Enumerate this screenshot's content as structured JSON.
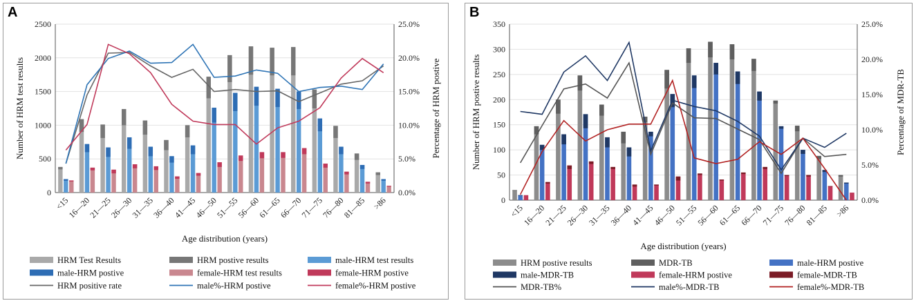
{
  "panelA": {
    "letter": "A",
    "chart_data": {
      "type": "bar",
      "categories": [
        "<15",
        "16—20",
        "21—25",
        "26—30",
        "31—35",
        "36—40",
        "41—45",
        "46—50",
        "51—55",
        "56—60",
        "61—65",
        "66—70",
        "71—75",
        "76—80",
        "81—85",
        ">86"
      ],
      "ylabel": "Number of HRM test results",
      "y2label": "Percentage of HRM postive",
      "xlabel": "Age distribution (years)",
      "ylim": [
        0,
        2500
      ],
      "yticks": [
        "0",
        "500",
        "1000",
        "1500",
        "2000",
        "2500"
      ],
      "y2lim": [
        0,
        25
      ],
      "y2ticks": [
        "0.0%",
        "5.0%",
        "10.0%",
        "15.0%",
        "20.0%",
        "25.0%"
      ],
      "bar_groups": [
        {
          "name": "HRM Test Results",
          "color": "#a9a9a9",
          "values": [
            380,
            1090,
            1010,
            1240,
            1070,
            780,
            1000,
            1720,
            2040,
            2170,
            2150,
            2160,
            1530,
            990,
            580,
            300
          ]
        },
        {
          "name": "male-HRM test results",
          "color": "#5b9bd5",
          "values": [
            200,
            720,
            670,
            820,
            680,
            540,
            700,
            1260,
            1480,
            1570,
            1540,
            1500,
            1100,
            680,
            410,
            200
          ]
        },
        {
          "name": "female-HRM test results",
          "color": "#c9878f",
          "values": [
            180,
            370,
            340,
            420,
            390,
            240,
            290,
            450,
            550,
            600,
            600,
            660,
            430,
            310,
            160,
            100
          ]
        }
      ],
      "stack_overlays": [
        {
          "name": "HRM postive results",
          "color": "#777777",
          "base_group": 0,
          "values": [
            35,
            190,
            200,
            240,
            210,
            150,
            180,
            320,
            400,
            420,
            410,
            420,
            280,
            180,
            95,
            40
          ]
        },
        {
          "name": "male-HRM postive",
          "color": "#2e6db4",
          "base_group": 1,
          "values": [
            25,
            120,
            140,
            170,
            140,
            95,
            130,
            220,
            270,
            280,
            270,
            260,
            190,
            110,
            60,
            25
          ]
        },
        {
          "name": "female-HRM postive",
          "color": "#c0395a",
          "base_group": 2,
          "values": [
            15,
            40,
            55,
            60,
            55,
            35,
            40,
            70,
            80,
            90,
            85,
            90,
            60,
            40,
            25,
            12
          ]
        }
      ],
      "lines": [
        {
          "name": "HRM positive rate",
          "color": "#666666",
          "values": [
            4.3,
            14.5,
            20.7,
            20.8,
            18.8,
            17.1,
            18.3,
            15.0,
            15.3,
            15.0,
            15.1,
            13.5,
            14.8,
            16.1,
            16.6,
            18.8
          ]
        },
        {
          "name": "male%-HRM postive",
          "color": "#2e74b5",
          "values": [
            4.3,
            16.0,
            19.9,
            21.0,
            19.2,
            19.3,
            22.0,
            17.1,
            17.3,
            18.2,
            17.7,
            15.0,
            15.6,
            15.8,
            15.3,
            19.1
          ]
        },
        {
          "name": "female%-HRM postive",
          "color": "#c0395a",
          "values": [
            6.3,
            10.1,
            22.0,
            20.6,
            17.8,
            13.1,
            10.6,
            10.1,
            10.1,
            7.2,
            9.6,
            10.6,
            12.6,
            17.0,
            19.9,
            17.8
          ]
        }
      ],
      "legend": [
        {
          "label": "HRM Test Results",
          "kind": "box",
          "color": "#a9a9a9"
        },
        {
          "label": "HRM postive results",
          "kind": "box",
          "color": "#777777"
        },
        {
          "label": "male-HRM test results",
          "kind": "box",
          "color": "#5b9bd5"
        },
        {
          "label": "male-HRM postive",
          "kind": "box",
          "color": "#2e6db4"
        },
        {
          "label": "female-HRM test results",
          "kind": "box",
          "color": "#c9878f"
        },
        {
          "label": "female-HRM postive",
          "kind": "box",
          "color": "#c0395a"
        },
        {
          "label": "HRM positive rate",
          "kind": "line",
          "color": "#666666"
        },
        {
          "label": "male%-HRM postive",
          "kind": "line",
          "color": "#2e74b5"
        },
        {
          "label": "female%-HRM postive",
          "kind": "line",
          "color": "#c0395a"
        }
      ]
    }
  },
  "panelB": {
    "letter": "B",
    "chart_data": {
      "type": "bar",
      "categories": [
        "<15",
        "16—20",
        "21—25",
        "26—30",
        "31—35",
        "36—40",
        "41—45",
        "46—50",
        "51—55",
        "56—60",
        "61—65",
        "66—70",
        "71—75",
        "76—80",
        "81—85",
        ">86"
      ],
      "ylabel": "Number of HRM postive results",
      "y2label": "Percentage of MDR-TB",
      "xlabel": "Age distribution (years)",
      "ylim": [
        0,
        350
      ],
      "yticks": [
        "0",
        "50",
        "100",
        "150",
        "200",
        "250",
        "300",
        "350"
      ],
      "y2lim": [
        0,
        25
      ],
      "y2ticks": [
        "0.0%",
        "5.0%",
        "10.0%",
        "15.0%",
        "20.0%",
        "25.0%"
      ],
      "bar_groups": [
        {
          "name": "HRM postive results",
          "color": "#8c8c8c",
          "values": [
            20,
            147,
            200,
            248,
            190,
            136,
            166,
            259,
            302,
            315,
            310,
            281,
            198,
            148,
            88,
            50
          ]
        },
        {
          "name": "male-HRM postive",
          "color": "#4472c4",
          "values": [
            10,
            110,
            131,
            171,
            125,
            105,
            136,
            211,
            248,
            273,
            256,
            216,
            147,
            100,
            60,
            35
          ]
        },
        {
          "name": "female-HRM postive",
          "color": "#c0395a",
          "values": [
            10,
            36,
            69,
            77,
            66,
            31,
            31,
            47,
            53,
            41,
            55,
            66,
            50,
            50,
            28,
            15
          ]
        }
      ],
      "stack_overlays": [
        {
          "name": "MDR-TB",
          "color": "#5f5f5f",
          "base_group": 0,
          "values": [
            1,
            16,
            28,
            30,
            22,
            23,
            11,
            37,
            29,
            31,
            30,
            24,
            6,
            11,
            6,
            3
          ]
        },
        {
          "name": "male-MDR-TB",
          "color": "#1f3864",
          "base_group": 1,
          "values": [
            1,
            10,
            20,
            28,
            20,
            18,
            9,
            26,
            25,
            23,
            25,
            18,
            5,
            8,
            4,
            2
          ]
        },
        {
          "name": "female-MDR-TB",
          "color": "#7b1c26",
          "base_group": 2,
          "values": [
            0,
            3,
            7,
            5,
            4,
            4,
            2,
            8,
            3,
            2,
            3,
            4,
            2,
            3,
            1,
            0
          ]
        }
      ],
      "lines": [
        {
          "name": "MDR-TB%",
          "color": "#555555",
          "values": [
            5.3,
            10.6,
            15.8,
            16.5,
            14.5,
            19.5,
            6.5,
            13.8,
            11.7,
            11.6,
            10.1,
            8.6,
            3.8,
            8.8,
            6.2,
            6.5
          ]
        },
        {
          "name": "male%-MDR-TB",
          "color": "#1f3864",
          "values": [
            12.6,
            12.2,
            18.2,
            20.5,
            17.0,
            22.4,
            7.0,
            14.2,
            13.3,
            12.7,
            11.2,
            9.1,
            4.3,
            8.8,
            7.5,
            9.5
          ]
        },
        {
          "name": "female%-MDR-TB",
          "color": "#b22222",
          "values": [
            0.8,
            6.9,
            11.3,
            8.4,
            10.0,
            10.8,
            10.8,
            17.0,
            6.0,
            5.2,
            5.8,
            8.3,
            6.5,
            8.8,
            4.5,
            0.0
          ]
        }
      ],
      "legend": [
        {
          "label": "HRM postive results",
          "kind": "box",
          "color": "#8c8c8c"
        },
        {
          "label": "MDR-TB",
          "kind": "box",
          "color": "#5f5f5f"
        },
        {
          "label": "male-HRM postive",
          "kind": "box",
          "color": "#4472c4"
        },
        {
          "label": "male-MDR-TB",
          "kind": "box",
          "color": "#1f3864"
        },
        {
          "label": "female-HRM postive",
          "kind": "box",
          "color": "#c0395a"
        },
        {
          "label": "female-MDR-TB",
          "kind": "box",
          "color": "#7b1c26"
        },
        {
          "label": "MDR-TB%",
          "kind": "line",
          "color": "#555555"
        },
        {
          "label": "male%-MDR-TB",
          "kind": "line",
          "color": "#1f3864"
        },
        {
          "label": "female%-MDR-TB",
          "kind": "line",
          "color": "#b22222"
        }
      ]
    }
  }
}
